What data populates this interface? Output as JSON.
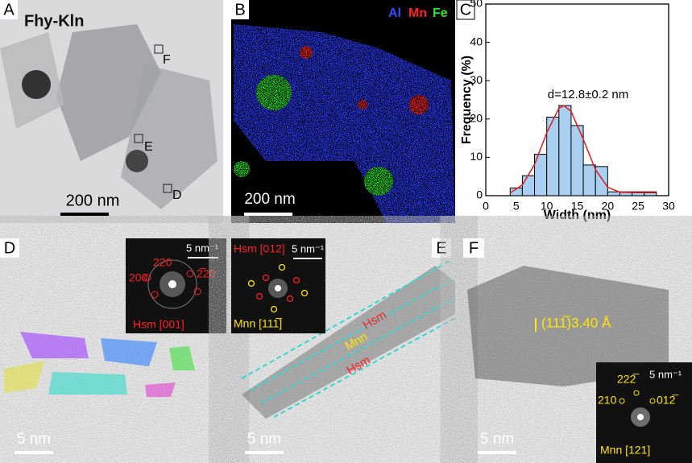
{
  "panels": {
    "a": {
      "label": "A",
      "title": "Fhy-Kln",
      "boxes": [
        "F",
        "E",
        "D"
      ],
      "scale": "200 nm"
    },
    "b": {
      "label": "B",
      "elements": [
        "Al",
        "Mn",
        "Fe"
      ],
      "scale": "200 nm"
    },
    "c": {
      "label": "C"
    },
    "d": {
      "label": "D",
      "fft_scale": "5 nm⁻¹",
      "spots": [
        "220",
        "200",
        "2̅20"
      ],
      "zone": "Hsm [001]",
      "scale": "5 nm"
    },
    "e": {
      "label": "E",
      "zone1": "Hsm [012]",
      "fft_scale": "5 nm⁻¹",
      "zone2": "Mnn [111̅]",
      "layers": [
        "Hsm",
        "Mnn",
        "Hsm"
      ],
      "scale": "5 nm"
    },
    "f": {
      "label": "F",
      "fringe": "(111̅)3.40 Å",
      "spots": [
        "222̅",
        "210",
        "012̅"
      ],
      "fft_scale": "5 nm⁻¹",
      "zone": "Mnn [121]",
      "scale": "5 nm"
    }
  },
  "chart_data": {
    "type": "histogram",
    "xlabel": "Width (nm)",
    "ylabel": "Frequency (%)",
    "annotation": "d=12.8±0.2 nm",
    "bins": [
      4,
      6,
      8,
      10,
      12,
      14,
      16,
      18,
      20,
      22,
      24,
      26,
      28
    ],
    "values": [
      2,
      5.2,
      10.8,
      20.5,
      23.5,
      18.3,
      8,
      7.6,
      1,
      1,
      1,
      1
    ],
    "color": "#a9d0f0",
    "fit": {
      "color": "#e41a1c",
      "x": [
        4,
        6,
        8,
        10,
        12,
        12.8,
        14,
        16,
        18,
        20,
        22,
        25,
        28
      ],
      "y": [
        0.7,
        2.8,
        8.1,
        16.4,
        22.8,
        23.5,
        22,
        14.7,
        6.8,
        2.2,
        0.9,
        0.8,
        0.8
      ]
    },
    "xlim": [
      0,
      30
    ],
    "ylim": [
      0,
      50
    ],
    "xticks": [
      0,
      5,
      10,
      15,
      20,
      25,
      30
    ],
    "yticks": [
      0,
      10,
      20,
      30,
      40,
      50
    ]
  }
}
